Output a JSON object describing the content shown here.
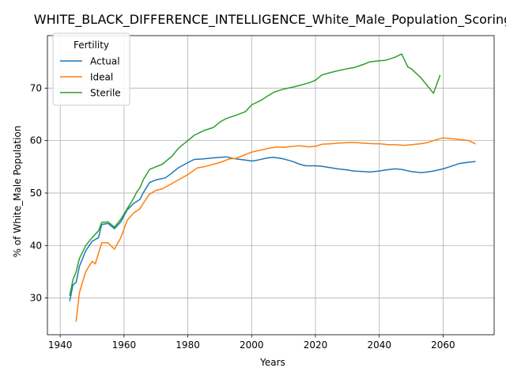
{
  "chart_data": {
    "type": "line",
    "title": "WHITE_BLACK_DIFFERENCE_INTELLIGENCE_White_Male_Population_Scoring",
    "xlabel": "Years",
    "ylabel": "% of White_Male Population",
    "xlim": [
      1936,
      2076
    ],
    "ylim": [
      23,
      80
    ],
    "xticks": [
      1940,
      1960,
      1980,
      2000,
      2020,
      2040,
      2060
    ],
    "yticks": [
      30,
      40,
      50,
      60,
      70
    ],
    "grid": true,
    "legend": {
      "title": "Fertility",
      "placement": "upper-left"
    },
    "series": [
      {
        "name": "Actual",
        "color": "#1f77b4",
        "x": [
          1943,
          1944,
          1945,
          1946,
          1948,
          1950,
          1952,
          1953,
          1955,
          1957,
          1959,
          1961,
          1963,
          1965,
          1966,
          1968,
          1970,
          1973,
          1975,
          1977,
          1980,
          1982,
          1985,
          1988,
          1990,
          1992,
          1995,
          1998,
          2000,
          2002,
          2005,
          2007,
          2010,
          2013,
          2015,
          2017,
          2020,
          2022,
          2025,
          2027,
          2030,
          2032,
          2035,
          2037,
          2040,
          2042,
          2045,
          2047,
          2050,
          2053,
          2055,
          2057,
          2060,
          2062,
          2065,
          2067,
          2070
        ],
        "y": [
          29.5,
          32.5,
          33.0,
          36.0,
          39.0,
          40.8,
          41.5,
          44.0,
          44.2,
          43.2,
          44.5,
          46.8,
          48.0,
          48.8,
          50.0,
          52.0,
          52.5,
          52.9,
          53.8,
          54.8,
          55.8,
          56.4,
          56.5,
          56.7,
          56.8,
          56.9,
          56.5,
          56.3,
          56.1,
          56.3,
          56.7,
          56.8,
          56.5,
          56.0,
          55.5,
          55.2,
          55.2,
          55.1,
          54.8,
          54.6,
          54.4,
          54.2,
          54.1,
          54.0,
          54.2,
          54.4,
          54.6,
          54.5,
          54.1,
          53.9,
          54.0,
          54.2,
          54.6,
          55.0,
          55.6,
          55.8,
          56.0
        ]
      },
      {
        "name": "Ideal",
        "color": "#ff7f0e",
        "x": [
          1945,
          1946,
          1948,
          1950,
          1951,
          1953,
          1955,
          1957,
          1959,
          1961,
          1963,
          1965,
          1966,
          1968,
          1970,
          1972,
          1975,
          1977,
          1980,
          1983,
          1985,
          1988,
          1990,
          1993,
          1995,
          1998,
          2000,
          2003,
          2005,
          2008,
          2010,
          2013,
          2015,
          2018,
          2020,
          2022,
          2025,
          2027,
          2030,
          2033,
          2035,
          2038,
          2040,
          2043,
          2045,
          2048,
          2050,
          2053,
          2055,
          2058,
          2060,
          2062,
          2065,
          2068,
          2070
        ],
        "y": [
          25.6,
          31.0,
          35.0,
          37.0,
          36.5,
          40.5,
          40.5,
          39.3,
          41.5,
          44.8,
          46.2,
          47.0,
          48.0,
          49.8,
          50.5,
          50.8,
          51.8,
          52.5,
          53.5,
          54.8,
          55.0,
          55.5,
          55.8,
          56.5,
          56.6,
          57.3,
          57.8,
          58.2,
          58.5,
          58.8,
          58.7,
          58.9,
          59.0,
          58.8,
          58.9,
          59.3,
          59.4,
          59.5,
          59.6,
          59.6,
          59.5,
          59.4,
          59.4,
          59.2,
          59.2,
          59.1,
          59.2,
          59.4,
          59.6,
          60.2,
          60.5,
          60.4,
          60.2,
          60.0,
          59.4
        ]
      },
      {
        "name": "Sterile",
        "color": "#2ca02c",
        "x": [
          1943,
          1944,
          1945,
          1946,
          1948,
          1950,
          1952,
          1953,
          1955,
          1957,
          1959,
          1961,
          1963,
          1964,
          1965,
          1966,
          1968,
          1970,
          1972,
          1975,
          1977,
          1980,
          1982,
          1985,
          1988,
          1990,
          1992,
          1995,
          1998,
          2000,
          2003,
          2005,
          2007,
          2010,
          2013,
          2015,
          2018,
          2020,
          2022,
          2025,
          2027,
          2030,
          2032,
          2035,
          2037,
          2040,
          2042,
          2045,
          2047,
          2049,
          2050,
          2053,
          2055,
          2057,
          2059
        ],
        "y": [
          30.5,
          33.5,
          35.0,
          37.5,
          40.0,
          41.5,
          42.8,
          44.4,
          44.5,
          43.5,
          45.0,
          47.0,
          49.0,
          50.2,
          51.0,
          52.5,
          54.5,
          55.0,
          55.5,
          57.0,
          58.5,
          60.0,
          61.0,
          61.9,
          62.5,
          63.5,
          64.2,
          64.8,
          65.5,
          66.8,
          67.7,
          68.5,
          69.2,
          69.8,
          70.2,
          70.5,
          71.0,
          71.5,
          72.5,
          73.0,
          73.3,
          73.7,
          73.9,
          74.5,
          75.0,
          75.2,
          75.3,
          75.9,
          76.5,
          74.0,
          73.7,
          72.0,
          70.5,
          69.0,
          72.4
        ]
      }
    ]
  }
}
